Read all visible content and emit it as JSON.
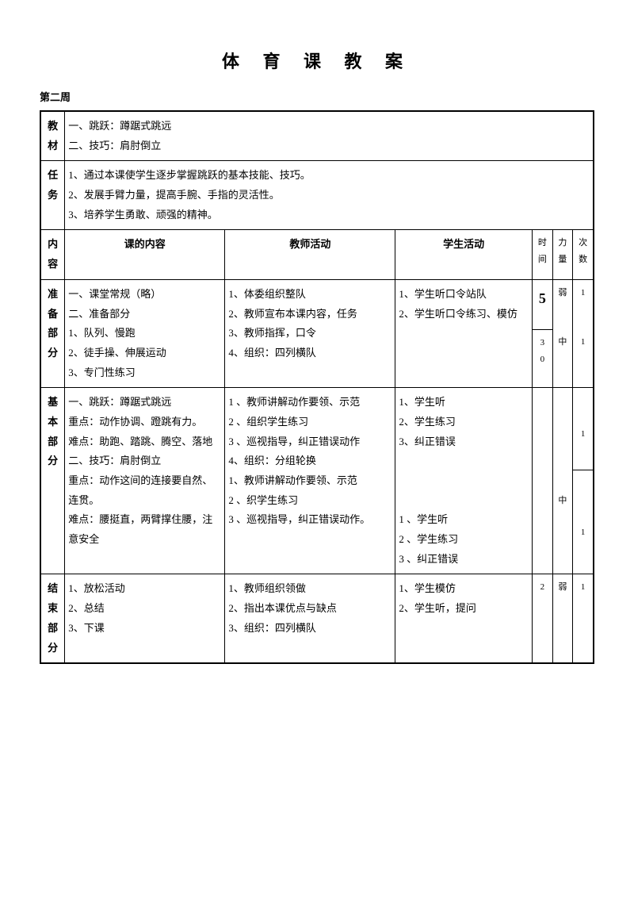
{
  "title": "体 育 课 教 案",
  "subtitle": "第二周",
  "labels": {
    "jiaocai": "教材",
    "renwu": "任务",
    "neirong": "内容",
    "zhunbei": "准备部分",
    "jiben": "基本部分",
    "jieshu": "结束部分"
  },
  "headers": {
    "course_content": "课的内容",
    "teacher_activity": "教师活动",
    "student_activity": "学生活动",
    "time": "时间",
    "force": "力量",
    "times": "次数"
  },
  "jiaocai_text": "一、跳跃：蹲踞式跳远\n二、技巧：肩肘倒立",
  "renwu_text": "1、通过本课使学生逐步掌握跳跃的基本技能、技巧。\n2、发展手臂力量，提高手腕、手指的灵活性。\n3、培养学生勇敢、顽强的精神。",
  "prep": {
    "content": "一、课堂常规（略）\n二、准备部分\n1、队列、慢跑\n2、徒手操、伸展运动\n3、专门性练习",
    "teacher": "1、体委组织整队\n2、教师宣布本课内容，任务\n3、教师指挥，口令\n4、组织：四列横队",
    "student": "1、学生听口令站队\n2、学生听口令练习、模仿",
    "time1": "5",
    "time2": "3\n0",
    "force1": "弱",
    "force2": "中",
    "times1": "1",
    "times2": "1"
  },
  "basic": {
    "content": "一、跳跃：蹲踞式跳远\n重点：动作协调、蹬跳有力。\n难点：助跑、踏跳、腾空、落地\n二、技巧：肩肘倒立\n重点：动作这间的连接要自然、连贯。\n难点：腰挺直，两臂撑住腰，注意安全",
    "teacher": "1 、教师讲解动作要领、示范\n2 、组织学生练习\n3 、巡视指导，纠正错误动作\n4、组织：分组轮换\n1、教师讲解动作要领、示范\n2 、织学生练习\n3 、巡视指导，纠正错误动作。",
    "student": "1、学生听\n2、学生练习\n3、纠正错误\n\n\n\n1 、学生听\n2 、学生练习\n3 、纠正错误",
    "force": "中",
    "times1": "1",
    "times2": "1"
  },
  "end": {
    "content": "1、放松活动\n2、总结\n3、下课",
    "teacher": "1、教师组织领做\n2、指出本课优点与缺点\n3、组织：四列横队",
    "student": "1、学生模仿\n2、学生听，提问",
    "time": "2",
    "force": "弱",
    "times": "1"
  }
}
